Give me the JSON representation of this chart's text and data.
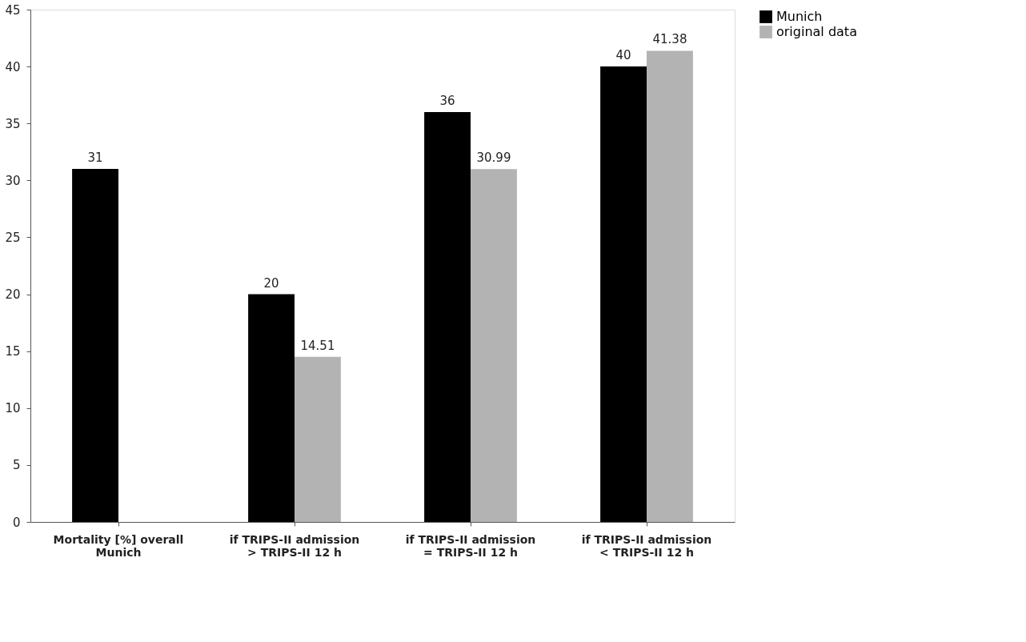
{
  "chart_data": {
    "type": "bar",
    "categories": [
      "Mortality [%] overall\nMunich",
      "if TRIPS-II admission\n> TRIPS-II 12 h",
      "if TRIPS-II admission\n= TRIPS-II 12 h",
      "if TRIPS-II admission\n< TRIPS-II 12 h"
    ],
    "series": [
      {
        "name": "Munich",
        "color": "#000000",
        "values": [
          31,
          20,
          36,
          40
        ]
      },
      {
        "name": "original data",
        "color": "#b3b3b3",
        "values": [
          null,
          14.51,
          30.99,
          41.38
        ]
      }
    ],
    "ylim": [
      0,
      45
    ],
    "yticks": [
      0,
      5,
      10,
      15,
      20,
      25,
      30,
      35,
      40,
      45
    ],
    "data_labels": true,
    "grid": false,
    "legend": "right"
  }
}
